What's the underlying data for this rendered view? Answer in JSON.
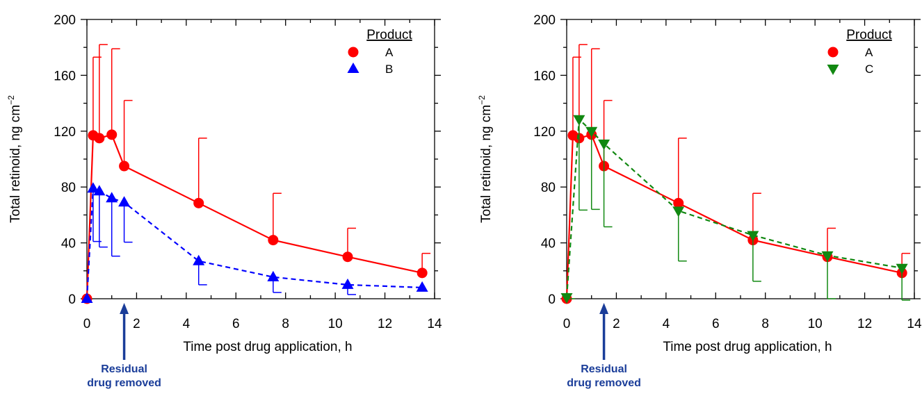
{
  "chart_data": [
    {
      "type": "line",
      "xlabel": "Time post drug application, h",
      "ylabel": "Total retinoid, ng cm",
      "ylabel_sup": "−2",
      "xlim": [
        0,
        14
      ],
      "ylim": [
        0,
        200
      ],
      "xticks": [
        "0",
        "2",
        "4",
        "6",
        "8",
        "10",
        "12",
        "14"
      ],
      "yticks": [
        "0",
        "40",
        "80",
        "120",
        "160",
        "200"
      ],
      "legend_title": "Product",
      "legend_position": "top-right",
      "annotation_lines": [
        "Residual",
        "drug removed"
      ],
      "annotation_x": 1.5,
      "annotation_color": "#1a3d99",
      "series": [
        {
          "name": "A",
          "marker": "circle",
          "color": "#ff0000",
          "dash": false,
          "x": [
            0,
            0.25,
            0.5,
            1,
            1.5,
            4.5,
            7.5,
            10.5,
            13.5
          ],
          "y": [
            0,
            117,
            115,
            117.5,
            95,
            68.5,
            42,
            30,
            18.5
          ],
          "err_upper": [
            0,
            173,
            182,
            179,
            142,
            115,
            75.5,
            50.5,
            32.5
          ],
          "err_lower": [
            0,
            117,
            115,
            117.5,
            95,
            68.5,
            42,
            30,
            18.5
          ]
        },
        {
          "name": "B",
          "marker": "triangle-up",
          "color": "#0000ff",
          "dash": true,
          "x": [
            0,
            0.25,
            0.5,
            1,
            1.5,
            4.5,
            7.5,
            10.5,
            13.5
          ],
          "y": [
            0,
            79,
            77,
            72,
            69,
            27,
            15.5,
            10,
            8
          ],
          "err_upper": [
            0,
            79,
            77,
            72,
            69,
            27,
            15.5,
            10,
            8
          ],
          "err_lower": [
            0,
            41,
            37,
            30.5,
            40.5,
            10,
            4.5,
            3,
            8
          ]
        }
      ]
    },
    {
      "type": "line",
      "xlabel": "Time post drug application, h",
      "ylabel": "Total retinoid, ng cm",
      "ylabel_sup": "−2",
      "xlim": [
        0,
        14
      ],
      "ylim": [
        0,
        200
      ],
      "xticks": [
        "0",
        "2",
        "4",
        "6",
        "8",
        "10",
        "12",
        "14"
      ],
      "yticks": [
        "0",
        "40",
        "80",
        "120",
        "160",
        "200"
      ],
      "legend_title": "Product",
      "legend_position": "top-right",
      "annotation_lines": [
        "Residual",
        "drug removed"
      ],
      "annotation_x": 1.5,
      "annotation_color": "#1a3d99",
      "series": [
        {
          "name": "A",
          "marker": "circle",
          "color": "#ff0000",
          "dash": false,
          "x": [
            0,
            0.25,
            0.5,
            1,
            1.5,
            4.5,
            7.5,
            10.5,
            13.5
          ],
          "y": [
            0,
            117,
            115,
            117.5,
            95,
            68.5,
            42,
            30,
            18.5
          ],
          "err_upper": [
            0,
            173,
            182,
            179,
            142,
            115,
            75.5,
            50.5,
            32.5
          ],
          "err_lower": [
            0,
            117,
            115,
            117.5,
            95,
            68.5,
            42,
            30,
            18.5
          ]
        },
        {
          "name": "C",
          "marker": "triangle-down",
          "color": "#118811",
          "dash": true,
          "x": [
            0,
            0.5,
            1,
            1.5,
            4.5,
            7.5,
            10.5,
            13.5
          ],
          "y": [
            1,
            128.5,
            120,
            111,
            63,
            45.5,
            31,
            22
          ],
          "err_upper": [
            1,
            128.5,
            120,
            111,
            63,
            45.5,
            31,
            22
          ],
          "err_lower": [
            0,
            63.5,
            64,
            51.5,
            27,
            12.5,
            0,
            -1
          ]
        }
      ]
    }
  ]
}
